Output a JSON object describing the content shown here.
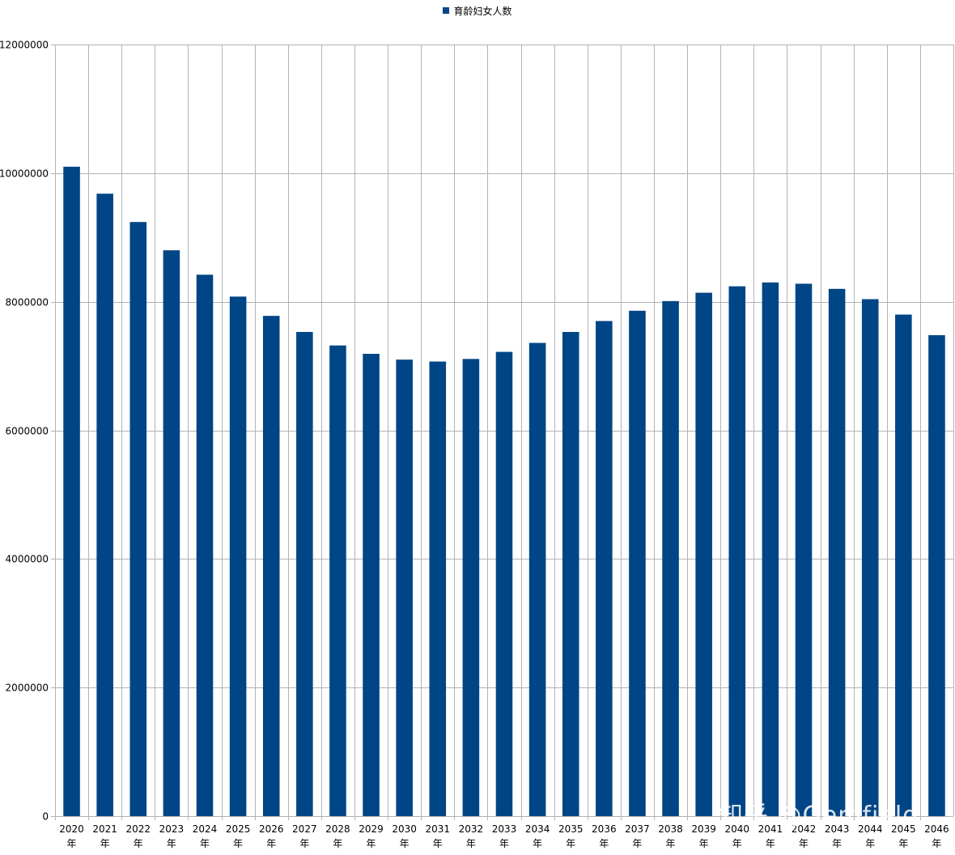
{
  "chart_data": {
    "type": "bar",
    "title": "",
    "legend": {
      "position": "top",
      "entries": [
        "育龄妇女人数"
      ]
    },
    "grid": true,
    "ylim": [
      0,
      12000000
    ],
    "yticks": [
      0,
      2000000,
      4000000,
      6000000,
      8000000,
      10000000,
      12000000
    ],
    "categories": [
      "2020年",
      "2021年",
      "2022年",
      "2023年",
      "2024年",
      "2025年",
      "2026年",
      "2027年",
      "2028年",
      "2029年",
      "2030年",
      "2031年",
      "2032年",
      "2033年",
      "2034年",
      "2035年",
      "2036年",
      "2037年",
      "2038年",
      "2039年",
      "2040年",
      "2041年",
      "2042年",
      "2043年",
      "2044年",
      "2045年",
      "2046年"
    ],
    "category_lines": [
      [
        "2020",
        "年"
      ],
      [
        "2021",
        "年"
      ],
      [
        "2022",
        "年"
      ],
      [
        "2023",
        "年"
      ],
      [
        "2024",
        "年"
      ],
      [
        "2025",
        "年"
      ],
      [
        "2026",
        "年"
      ],
      [
        "2027",
        "年"
      ],
      [
        "2028",
        "年"
      ],
      [
        "2029",
        "年"
      ],
      [
        "2030",
        "年"
      ],
      [
        "2031",
        "年"
      ],
      [
        "2032",
        "年"
      ],
      [
        "2033",
        "年"
      ],
      [
        "2034",
        "年"
      ],
      [
        "2035",
        "年"
      ],
      [
        "2036",
        "年"
      ],
      [
        "2037",
        "年"
      ],
      [
        "2038",
        "年"
      ],
      [
        "2039",
        "年"
      ],
      [
        "2040",
        "年"
      ],
      [
        "2041",
        "年"
      ],
      [
        "2042",
        "年"
      ],
      [
        "2043",
        "年"
      ],
      [
        "2044",
        "年"
      ],
      [
        "2045",
        "年"
      ],
      [
        "2046",
        "年"
      ]
    ],
    "series": [
      {
        "name": "育龄妇女人数",
        "color": "#004586",
        "values": [
          10100000,
          9680000,
          9240000,
          8800000,
          8420000,
          8080000,
          7780000,
          7530000,
          7320000,
          7190000,
          7100000,
          7070000,
          7110000,
          7220000,
          7360000,
          7530000,
          7700000,
          7860000,
          8010000,
          8140000,
          8240000,
          8300000,
          8280000,
          8200000,
          8040000,
          7800000,
          7480000
        ]
      }
    ]
  },
  "legend": {
    "label": "育龄妇女人数"
  },
  "watermark": "知乎 @Gemfield"
}
